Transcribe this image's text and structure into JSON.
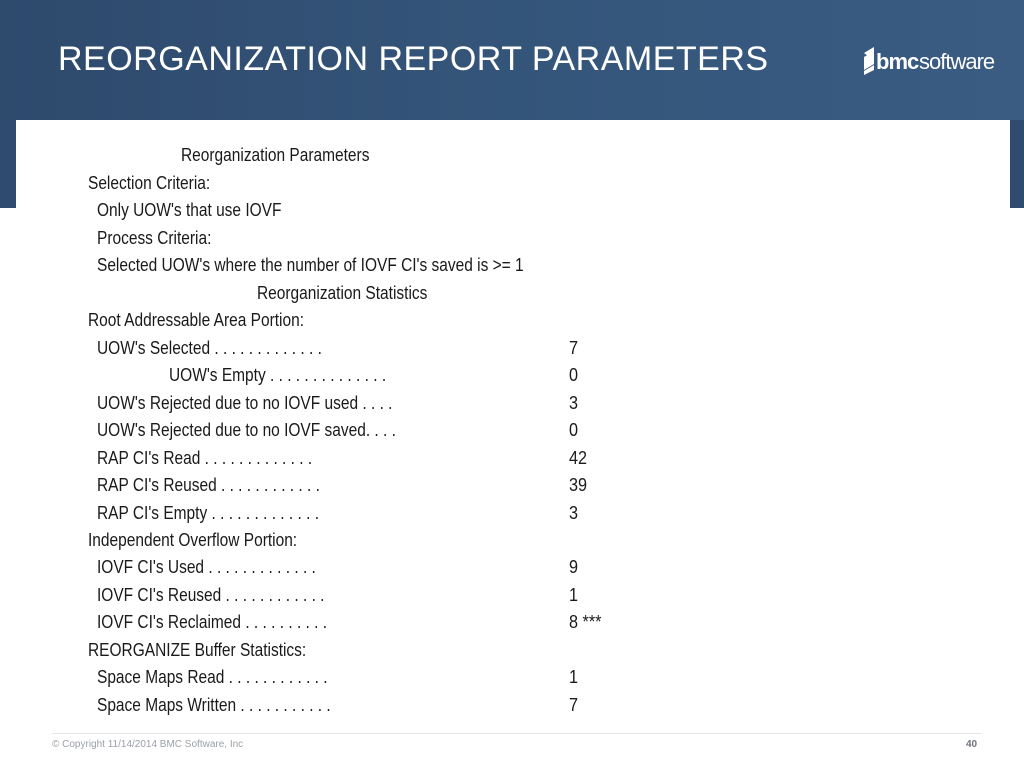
{
  "slide": {
    "title": "REORGANIZATION REPORT PARAMETERS",
    "logo_text": "bmcsoftware"
  },
  "report": {
    "lines": [
      {
        "label": "Reorganization Parameters",
        "value": ""
      },
      {
        "label": "Selection Criteria:",
        "value": ""
      },
      {
        "label": "Only UOW's that use IOVF",
        "value": ""
      },
      {
        "label": "Process Criteria:",
        "value": ""
      },
      {
        "label": "Selected UOW's where the number of IOVF CI's saved is >= 1",
        "value": ""
      },
      {
        "label": "Reorganization Statistics",
        "value": ""
      },
      {
        "label": "Root Addressable Area Portion:",
        "value": ""
      },
      {
        "label": "UOW's Selected . . . . . . . . . . . . .",
        "value": "7"
      },
      {
        "label": "UOW's Empty  . . . . . . . . . . . . . .",
        "value": "0"
      },
      {
        "label": "UOW's Rejected due to no IOVF used . . . .",
        "value": "3"
      },
      {
        "label": "UOW's Rejected due to no IOVF saved. . . .",
        "value": "0"
      },
      {
        "label": "RAP CI's Read  . . . . . . . . . . . . .",
        "value": "42"
      },
      {
        "label": "RAP CI's Reused  . . . . . . . . . . . .",
        "value": "39"
      },
      {
        "label": "RAP CI's Empty . . . . . . . . . . . . .",
        "value": "3"
      },
      {
        "label": "Independent Overflow Portion:",
        "value": ""
      },
      {
        "label": "IOVF CI's Used . . . . . . . . . . . . .",
        "value": "9"
      },
      {
        "label": "IOVF CI's Reused . . . . . . . . . . . .",
        "value": "1"
      },
      {
        "label": "IOVF CI's Reclaimed  . . . . . . . . . .",
        "value": "8 ***"
      },
      {
        "label": "REORGANIZE Buffer Statistics:",
        "value": ""
      },
      {
        "label": "Space Maps Read  . . . . . . . . . . . .",
        "value": "1"
      },
      {
        "label": "Space Maps Written . . . . . . . . . . .",
        "value": "7"
      }
    ]
  },
  "footer": {
    "copyright": "© Copyright 11/14/2014 BMC Software, Inc",
    "page_number": "40"
  },
  "colors": {
    "header": "#2e4a6d",
    "text": "#1a1a1a",
    "footer_text": "#9aa0a6"
  }
}
